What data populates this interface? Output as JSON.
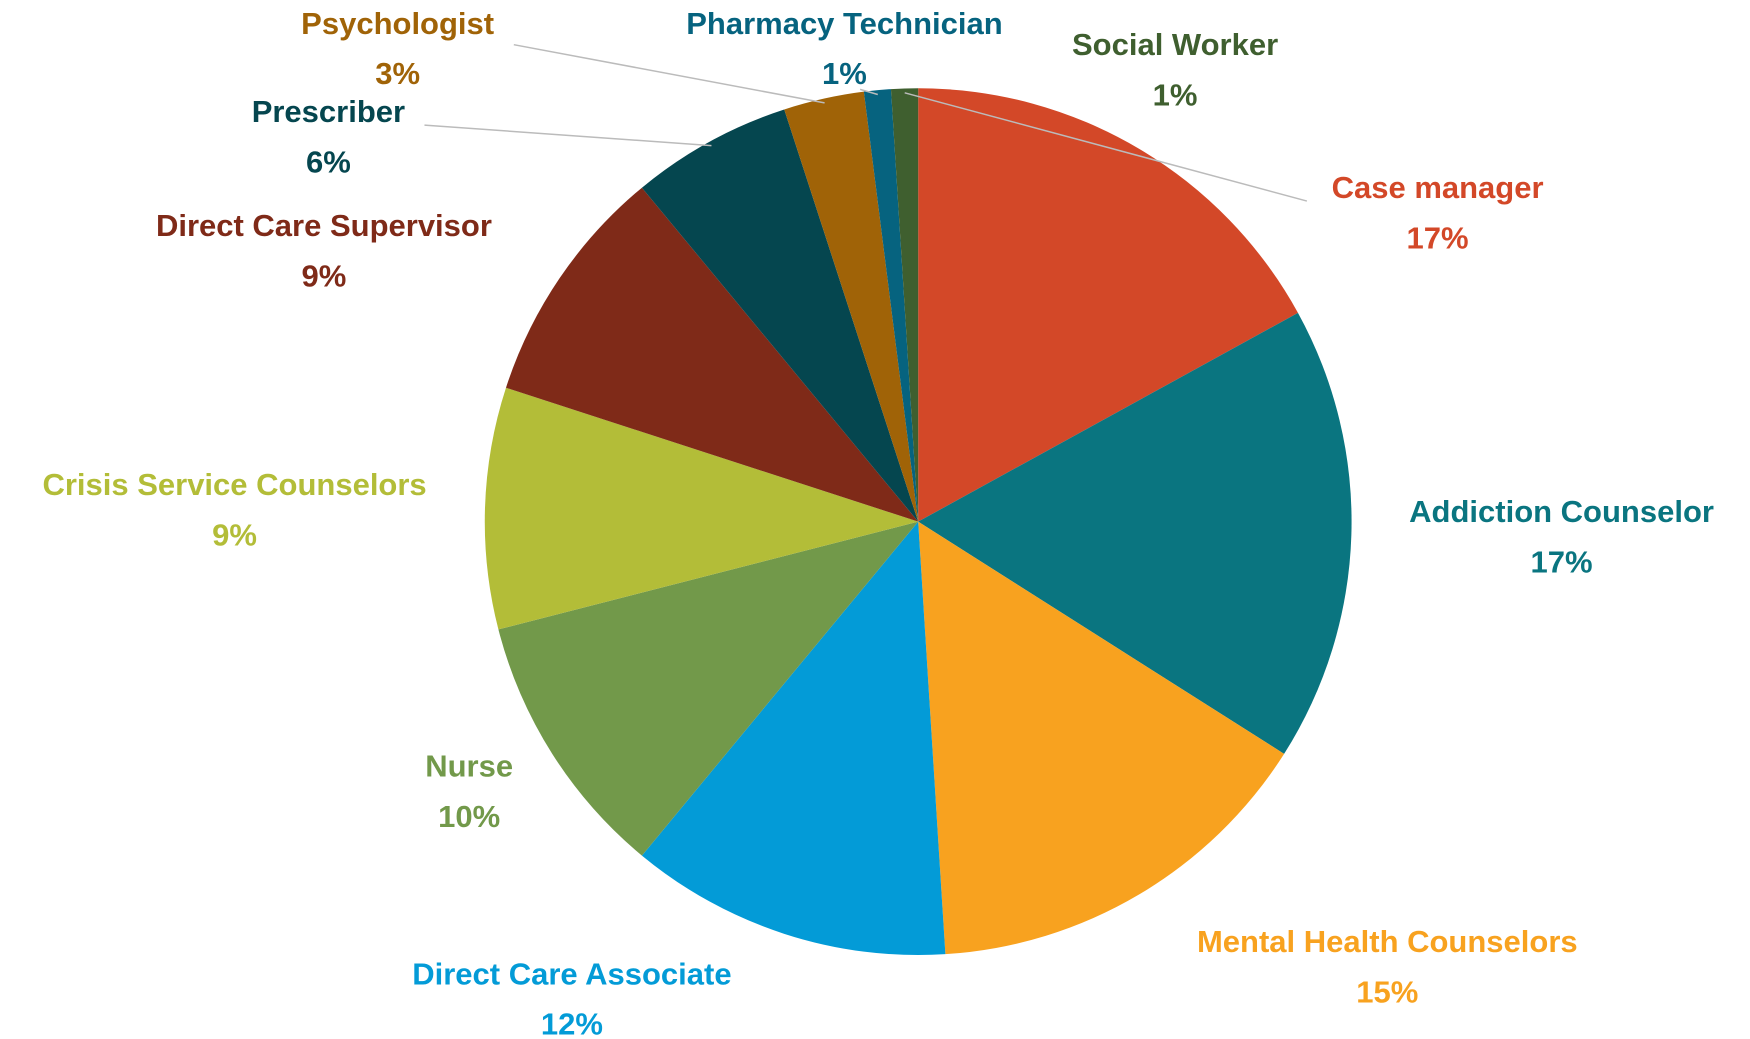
{
  "chart_data": {
    "type": "pie",
    "categories": [
      "Case manager",
      "Addiction Counselor",
      "Mental Health Counselors",
      "Direct Care Associate",
      "Nurse",
      "Crisis Service Counselors",
      "Direct Care Supervisor",
      "Prescriber",
      "Psychologist",
      "Pharmacy Technician",
      "Social Worker"
    ],
    "values": [
      17,
      17,
      15,
      12,
      10,
      9,
      9,
      6,
      3,
      1,
      1
    ],
    "value_labels": [
      "17%",
      "17%",
      "15%",
      "12%",
      "10%",
      "9%",
      "9%",
      "6%",
      "3%",
      "1%",
      "1%"
    ],
    "colors": [
      "#d34828",
      "#0a7580",
      "#f8a21f",
      "#039bd7",
      "#72994a",
      "#b3bd38",
      "#7f2a18",
      "#05464f",
      "#a06307",
      "#06637f",
      "#3f5f2f"
    ]
  }
}
